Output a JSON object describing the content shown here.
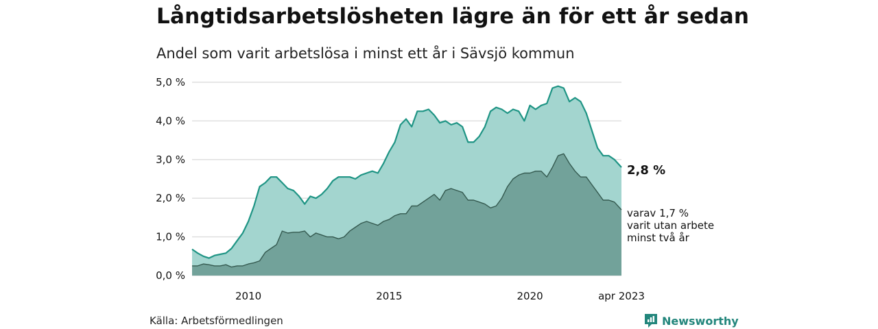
{
  "title": "Långtidsarbetslösheten lägre än för ett år sedan",
  "subtitle": "Andel som varit arbetslösa i minst ett år i Sävsjö kommun",
  "source": "Källa: Arbetsförmedlingen",
  "brand": "Newsworthy",
  "colors": {
    "total_fill": "#a3d5cf",
    "total_line": "#1e9484",
    "sub_fill": "#72a29a",
    "sub_line": "#34594f",
    "grid": "#dddddd",
    "brand": "#23867c"
  },
  "icons": {
    "logo": "newsworthy-logo-icon"
  },
  "chart_data": {
    "type": "area",
    "title": "Långtidsarbetslösheten lägre än för ett år sedan",
    "subtitle": "Andel som varit arbetslösa i minst ett år i Sävsjö kommun",
    "ylim": [
      0,
      5.0
    ],
    "y_ticks": [
      0,
      1,
      2,
      3,
      4,
      5
    ],
    "y_tick_labels": [
      "0,0 %",
      "1,0 %",
      "2,0 %",
      "3,0 %",
      "4,0 %",
      "5,0 %"
    ],
    "x_ticks": [
      2010,
      2015,
      2020,
      2023.25
    ],
    "x_tick_labels": [
      "2010",
      "2015",
      "2020",
      "apr 2023"
    ],
    "grid": "horizontal",
    "series": [
      {
        "role": "total",
        "label": "2,8 %",
        "points": [
          [
            2008.0,
            0.68
          ],
          [
            2008.2,
            0.58
          ],
          [
            2008.4,
            0.5
          ],
          [
            2008.6,
            0.45
          ],
          [
            2008.8,
            0.52
          ],
          [
            2009.0,
            0.55
          ],
          [
            2009.2,
            0.58
          ],
          [
            2009.4,
            0.7
          ],
          [
            2009.6,
            0.9
          ],
          [
            2009.8,
            1.1
          ],
          [
            2010.0,
            1.4
          ],
          [
            2010.2,
            1.8
          ],
          [
            2010.4,
            2.3
          ],
          [
            2010.6,
            2.4
          ],
          [
            2010.8,
            2.55
          ],
          [
            2011.0,
            2.55
          ],
          [
            2011.2,
            2.4
          ],
          [
            2011.4,
            2.25
          ],
          [
            2011.6,
            2.2
          ],
          [
            2011.8,
            2.05
          ],
          [
            2012.0,
            1.85
          ],
          [
            2012.2,
            2.05
          ],
          [
            2012.4,
            2.0
          ],
          [
            2012.6,
            2.1
          ],
          [
            2012.8,
            2.25
          ],
          [
            2013.0,
            2.45
          ],
          [
            2013.2,
            2.55
          ],
          [
            2013.4,
            2.55
          ],
          [
            2013.6,
            2.55
          ],
          [
            2013.8,
            2.5
          ],
          [
            2014.0,
            2.6
          ],
          [
            2014.2,
            2.65
          ],
          [
            2014.4,
            2.7
          ],
          [
            2014.6,
            2.65
          ],
          [
            2014.8,
            2.9
          ],
          [
            2015.0,
            3.2
          ],
          [
            2015.2,
            3.45
          ],
          [
            2015.4,
            3.9
          ],
          [
            2015.6,
            4.05
          ],
          [
            2015.8,
            3.85
          ],
          [
            2016.0,
            4.25
          ],
          [
            2016.2,
            4.25
          ],
          [
            2016.4,
            4.3
          ],
          [
            2016.6,
            4.15
          ],
          [
            2016.8,
            3.95
          ],
          [
            2017.0,
            4.0
          ],
          [
            2017.2,
            3.9
          ],
          [
            2017.4,
            3.95
          ],
          [
            2017.6,
            3.85
          ],
          [
            2017.8,
            3.45
          ],
          [
            2018.0,
            3.45
          ],
          [
            2018.2,
            3.6
          ],
          [
            2018.4,
            3.85
          ],
          [
            2018.6,
            4.25
          ],
          [
            2018.8,
            4.35
          ],
          [
            2019.0,
            4.3
          ],
          [
            2019.2,
            4.2
          ],
          [
            2019.4,
            4.3
          ],
          [
            2019.6,
            4.25
          ],
          [
            2019.8,
            4.0
          ],
          [
            2020.0,
            4.4
          ],
          [
            2020.2,
            4.3
          ],
          [
            2020.4,
            4.4
          ],
          [
            2020.6,
            4.45
          ],
          [
            2020.8,
            4.85
          ],
          [
            2021.0,
            4.9
          ],
          [
            2021.2,
            4.85
          ],
          [
            2021.4,
            4.5
          ],
          [
            2021.6,
            4.6
          ],
          [
            2021.8,
            4.5
          ],
          [
            2022.0,
            4.2
          ],
          [
            2022.2,
            3.75
          ],
          [
            2022.4,
            3.3
          ],
          [
            2022.6,
            3.1
          ],
          [
            2022.8,
            3.1
          ],
          [
            2023.0,
            3.0
          ],
          [
            2023.25,
            2.8
          ]
        ]
      },
      {
        "role": "long_term_two_years",
        "label": "varav 1,7 % varit utan arbete minst två år",
        "label_lines": [
          "varav 1,7 %",
          "varit utan arbete",
          "minst två år"
        ],
        "points": [
          [
            2008.0,
            0.25
          ],
          [
            2008.2,
            0.25
          ],
          [
            2008.4,
            0.3
          ],
          [
            2008.6,
            0.28
          ],
          [
            2008.8,
            0.25
          ],
          [
            2009.0,
            0.25
          ],
          [
            2009.2,
            0.28
          ],
          [
            2009.4,
            0.22
          ],
          [
            2009.6,
            0.25
          ],
          [
            2009.8,
            0.25
          ],
          [
            2010.0,
            0.3
          ],
          [
            2010.2,
            0.33
          ],
          [
            2010.4,
            0.38
          ],
          [
            2010.6,
            0.6
          ],
          [
            2010.8,
            0.7
          ],
          [
            2011.0,
            0.8
          ],
          [
            2011.2,
            1.15
          ],
          [
            2011.4,
            1.1
          ],
          [
            2011.6,
            1.12
          ],
          [
            2011.8,
            1.12
          ],
          [
            2012.0,
            1.15
          ],
          [
            2012.2,
            1.0
          ],
          [
            2012.4,
            1.1
          ],
          [
            2012.6,
            1.05
          ],
          [
            2012.8,
            1.0
          ],
          [
            2013.0,
            1.0
          ],
          [
            2013.2,
            0.95
          ],
          [
            2013.4,
            1.0
          ],
          [
            2013.6,
            1.15
          ],
          [
            2013.8,
            1.25
          ],
          [
            2014.0,
            1.35
          ],
          [
            2014.2,
            1.4
          ],
          [
            2014.4,
            1.35
          ],
          [
            2014.6,
            1.3
          ],
          [
            2014.8,
            1.4
          ],
          [
            2015.0,
            1.45
          ],
          [
            2015.2,
            1.55
          ],
          [
            2015.4,
            1.6
          ],
          [
            2015.6,
            1.6
          ],
          [
            2015.8,
            1.8
          ],
          [
            2016.0,
            1.8
          ],
          [
            2016.2,
            1.9
          ],
          [
            2016.4,
            2.0
          ],
          [
            2016.6,
            2.1
          ],
          [
            2016.8,
            1.95
          ],
          [
            2017.0,
            2.2
          ],
          [
            2017.2,
            2.25
          ],
          [
            2017.4,
            2.2
          ],
          [
            2017.6,
            2.15
          ],
          [
            2017.8,
            1.95
          ],
          [
            2018.0,
            1.95
          ],
          [
            2018.2,
            1.9
          ],
          [
            2018.4,
            1.85
          ],
          [
            2018.6,
            1.75
          ],
          [
            2018.8,
            1.8
          ],
          [
            2019.0,
            2.0
          ],
          [
            2019.2,
            2.3
          ],
          [
            2019.4,
            2.5
          ],
          [
            2019.6,
            2.6
          ],
          [
            2019.8,
            2.65
          ],
          [
            2020.0,
            2.65
          ],
          [
            2020.2,
            2.7
          ],
          [
            2020.4,
            2.7
          ],
          [
            2020.6,
            2.55
          ],
          [
            2020.8,
            2.8
          ],
          [
            2021.0,
            3.1
          ],
          [
            2021.2,
            3.15
          ],
          [
            2021.4,
            2.9
          ],
          [
            2021.6,
            2.7
          ],
          [
            2021.8,
            2.55
          ],
          [
            2022.0,
            2.55
          ],
          [
            2022.2,
            2.35
          ],
          [
            2022.4,
            2.15
          ],
          [
            2022.6,
            1.95
          ],
          [
            2022.8,
            1.95
          ],
          [
            2023.0,
            1.9
          ],
          [
            2023.25,
            1.7
          ]
        ]
      }
    ]
  }
}
